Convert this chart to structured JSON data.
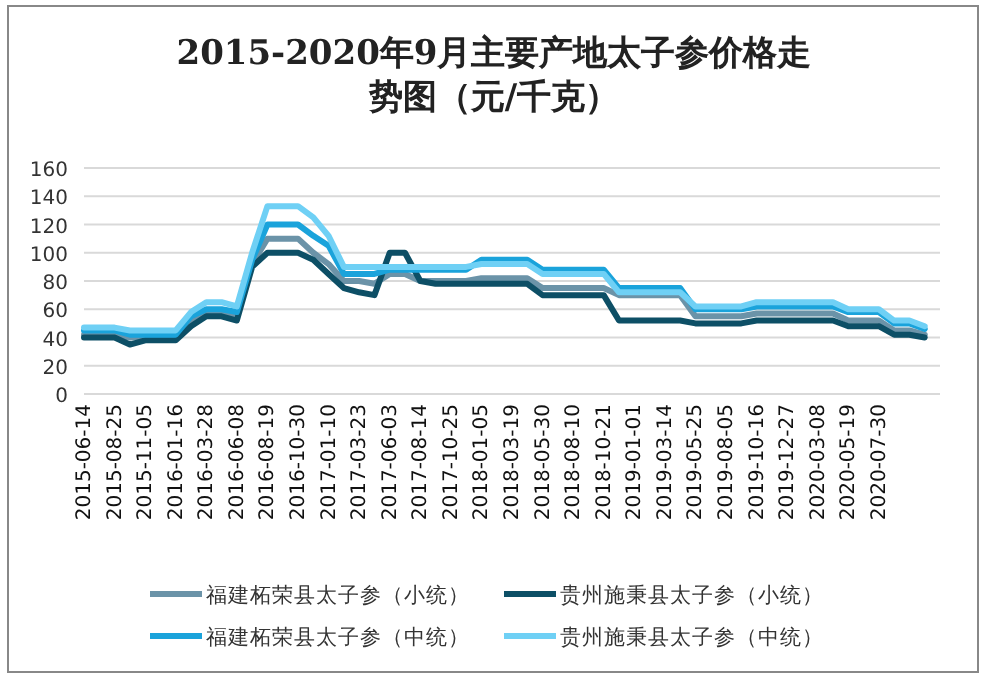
{
  "chart_data": {
    "type": "line",
    "title": "2015-2020年9月主要产地太子参价格走势图（元/千克）",
    "categories": [
      "2015-06-14",
      null,
      "2015-08-25",
      null,
      "2015-11-05",
      null,
      "2016-01-16",
      null,
      "2016-03-28",
      null,
      "2016-06-08",
      null,
      "2016-08-19",
      null,
      "2016-10-30",
      null,
      "2017-01-10",
      null,
      "2017-03-23",
      null,
      "2017-06-03",
      null,
      "2017-08-14",
      null,
      "2017-10-25",
      null,
      "2018-01-05",
      null,
      "2018-03-19",
      null,
      "2018-05-30",
      null,
      "2018-08-10",
      null,
      "2018-10-21",
      null,
      "2019-01-01",
      null,
      "2019-03-14",
      null,
      "2019-05-25",
      null,
      "2019-08-05",
      null,
      "2019-10-16",
      null,
      "2019-12-27",
      null,
      "2020-03-08",
      null,
      "2020-05-19",
      null,
      "2020-07-30",
      null,
      null,
      null
    ],
    "series": [
      {
        "name": "福建柘荣县太子参（小统）",
        "color": "#6b93a8",
        "values": [
          42,
          42,
          42,
          40,
          40,
          40,
          40,
          52,
          58,
          58,
          55,
          92,
          110,
          110,
          110,
          100,
          92,
          80,
          80,
          78,
          85,
          85,
          80,
          80,
          80,
          80,
          82,
          82,
          82,
          82,
          75,
          75,
          75,
          75,
          75,
          70,
          70,
          70,
          70,
          70,
          55,
          55,
          55,
          55,
          57,
          57,
          57,
          57,
          57,
          57,
          52,
          52,
          52,
          45,
          45,
          42
        ]
      },
      {
        "name": "贵州施秉县太子参（小统）",
        "color": "#0d4f66",
        "values": [
          40,
          40,
          40,
          35,
          38,
          38,
          38,
          48,
          55,
          55,
          52,
          90,
          100,
          100,
          100,
          95,
          85,
          75,
          72,
          70,
          100,
          100,
          80,
          78,
          78,
          78,
          78,
          78,
          78,
          78,
          70,
          70,
          70,
          70,
          70,
          52,
          52,
          52,
          52,
          52,
          50,
          50,
          50,
          50,
          52,
          52,
          52,
          52,
          52,
          52,
          48,
          48,
          48,
          42,
          42,
          40
        ]
      },
      {
        "name": "福建柘荣县太子参（中统）",
        "color": "#1aa3db",
        "values": [
          45,
          45,
          45,
          42,
          42,
          42,
          42,
          55,
          60,
          60,
          58,
          95,
          120,
          120,
          120,
          112,
          105,
          85,
          85,
          85,
          88,
          88,
          88,
          88,
          88,
          88,
          95,
          95,
          95,
          95,
          88,
          88,
          88,
          88,
          88,
          75,
          75,
          75,
          75,
          75,
          60,
          60,
          60,
          60,
          62,
          62,
          62,
          62,
          62,
          62,
          58,
          58,
          58,
          50,
          50,
          46
        ]
      },
      {
        "name": "贵州施秉县太子参（中统）",
        "color": "#6fd0f5",
        "values": [
          47,
          47,
          47,
          45,
          45,
          45,
          45,
          58,
          65,
          65,
          62,
          100,
          133,
          133,
          133,
          125,
          112,
          90,
          90,
          90,
          90,
          90,
          90,
          90,
          90,
          90,
          92,
          92,
          92,
          92,
          85,
          85,
          85,
          85,
          85,
          72,
          72,
          72,
          72,
          72,
          62,
          62,
          62,
          62,
          65,
          65,
          65,
          65,
          65,
          65,
          60,
          60,
          60,
          52,
          52,
          48
        ]
      }
    ],
    "ylim": [
      0,
      160
    ],
    "yticks": [
      0,
      20,
      40,
      60,
      80,
      100,
      120,
      140,
      160
    ],
    "grid": "y",
    "legend": "bottom"
  }
}
